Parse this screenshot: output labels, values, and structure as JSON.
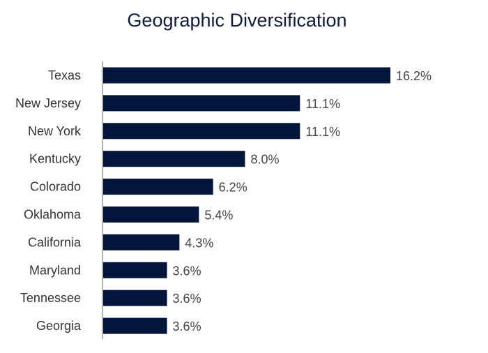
{
  "chart_data": {
    "type": "bar",
    "orientation": "horizontal",
    "title": "Geographic Diversification",
    "categories": [
      "Texas",
      "New Jersey",
      "New York",
      "Kentucky",
      "Colorado",
      "Oklahoma",
      "California",
      "Maryland",
      "Tennessee",
      "Georgia"
    ],
    "values": [
      16.2,
      11.1,
      11.1,
      8.0,
      6.2,
      5.4,
      4.3,
      3.6,
      3.6,
      3.6
    ],
    "data_labels": [
      "16.2%",
      "11.1%",
      "11.1%",
      "8.0%",
      "6.2%",
      "5.4%",
      "4.3%",
      "3.6%",
      "3.6%",
      "3.6%"
    ],
    "xlabel": "",
    "ylabel": "",
    "xlim": [
      0,
      16.2
    ],
    "grid": false,
    "bar_color": "#02153a",
    "axis_color": "#999999"
  }
}
